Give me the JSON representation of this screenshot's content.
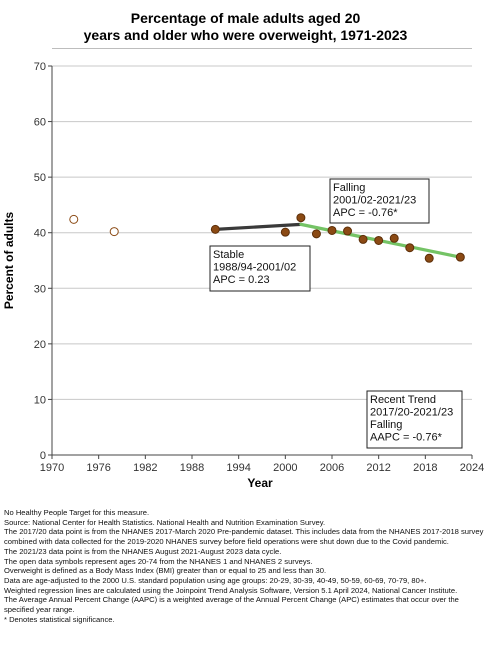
{
  "chart_data": {
    "type": "scatter",
    "title_lines": [
      "Percentage of male adults aged 20",
      "years and older who were overweight, 1971-2023"
    ],
    "xlabel": "Year",
    "ylabel": "Percent of adults",
    "xlim": [
      1970,
      2024
    ],
    "ylim": [
      0,
      70
    ],
    "x_ticks": [
      1970,
      1976,
      1982,
      1988,
      1994,
      2000,
      2006,
      2012,
      2018,
      2024
    ],
    "y_ticks": [
      0,
      10,
      20,
      30,
      40,
      50,
      60,
      70
    ],
    "grid": true,
    "series": [
      {
        "style": "open",
        "points": [
          {
            "x": 1972.8,
            "y": 42.4
          },
          {
            "x": 1978,
            "y": 40.2
          }
        ]
      },
      {
        "style": "filled",
        "points": [
          {
            "x": 1991,
            "y": 40.6
          },
          {
            "x": 2000,
            "y": 40.1
          },
          {
            "x": 2002,
            "y": 42.7
          },
          {
            "x": 2004,
            "y": 39.8
          },
          {
            "x": 2006,
            "y": 40.4
          },
          {
            "x": 2008,
            "y": 40.3
          },
          {
            "x": 2010,
            "y": 38.8
          },
          {
            "x": 2012,
            "y": 38.6
          },
          {
            "x": 2014,
            "y": 39.0
          },
          {
            "x": 2016,
            "y": 37.3
          },
          {
            "x": 2018.5,
            "y": 35.4
          },
          {
            "x": 2022.5,
            "y": 35.6
          }
        ]
      }
    ],
    "trend_lines": [
      {
        "color": "#3a3a3a",
        "from": [
          1991,
          40.6
        ],
        "to": [
          2002,
          41.5
        ]
      },
      {
        "color": "#74c365",
        "from": [
          2002,
          41.5
        ],
        "to": [
          2022.5,
          35.6
        ]
      }
    ],
    "annotations": [
      {
        "lines": [
          "Falling",
          "2001/02-2021/23",
          "APC = -0.76*"
        ]
      },
      {
        "lines": [
          "Stable",
          "1988/94-2001/02",
          "APC =  0.23"
        ]
      },
      {
        "lines": [
          "Recent Trend",
          "2017/20-2021/23",
          "Falling",
          "AAPC = -0.76*"
        ]
      }
    ],
    "colors": {
      "filled_marker": "#8b4a14",
      "open_marker": "#8b4a14",
      "grid": "#c8c8c8"
    }
  },
  "footnotes": [
    "No Healthy People Target for this measure.",
    "Source: National Center for Health Statistics. National Health and Nutrition Examination Survey.",
    "The 2017/20 data point is from the NHANES 2017-March 2020 Pre-pandemic dataset. This includes data from the NHANES 2017-2018 survey combined with data collected for the 2019-2020 NHANES survey before field operations were shut down due to the Covid pandemic.",
    "The 2021/23 data point is from the NHANES August 2021-August 2023 data cycle.",
    "The open data symbols represent ages 20-74 from the NHANES 1 and NHANES 2 surveys.",
    "Overweight is defined as a Body Mass Index (BMI) greater than or equal to 25 and less than 30.",
    "Data are age-adjusted to the 2000 U.S. standard population using age groups: 20-29, 30-39, 40-49, 50-59, 60-69, 70-79, 80+.",
    "Weighted regression lines are calculated using the Joinpoint Trend Analysis Software, Version 5.1 April 2024, National Cancer Institute.",
    "The Average Annual Percent Change (AAPC) is a weighted average of the Annual Percent Change (APC) estimates that occur over the specified year range.",
    "* Denotes statistical significance."
  ]
}
